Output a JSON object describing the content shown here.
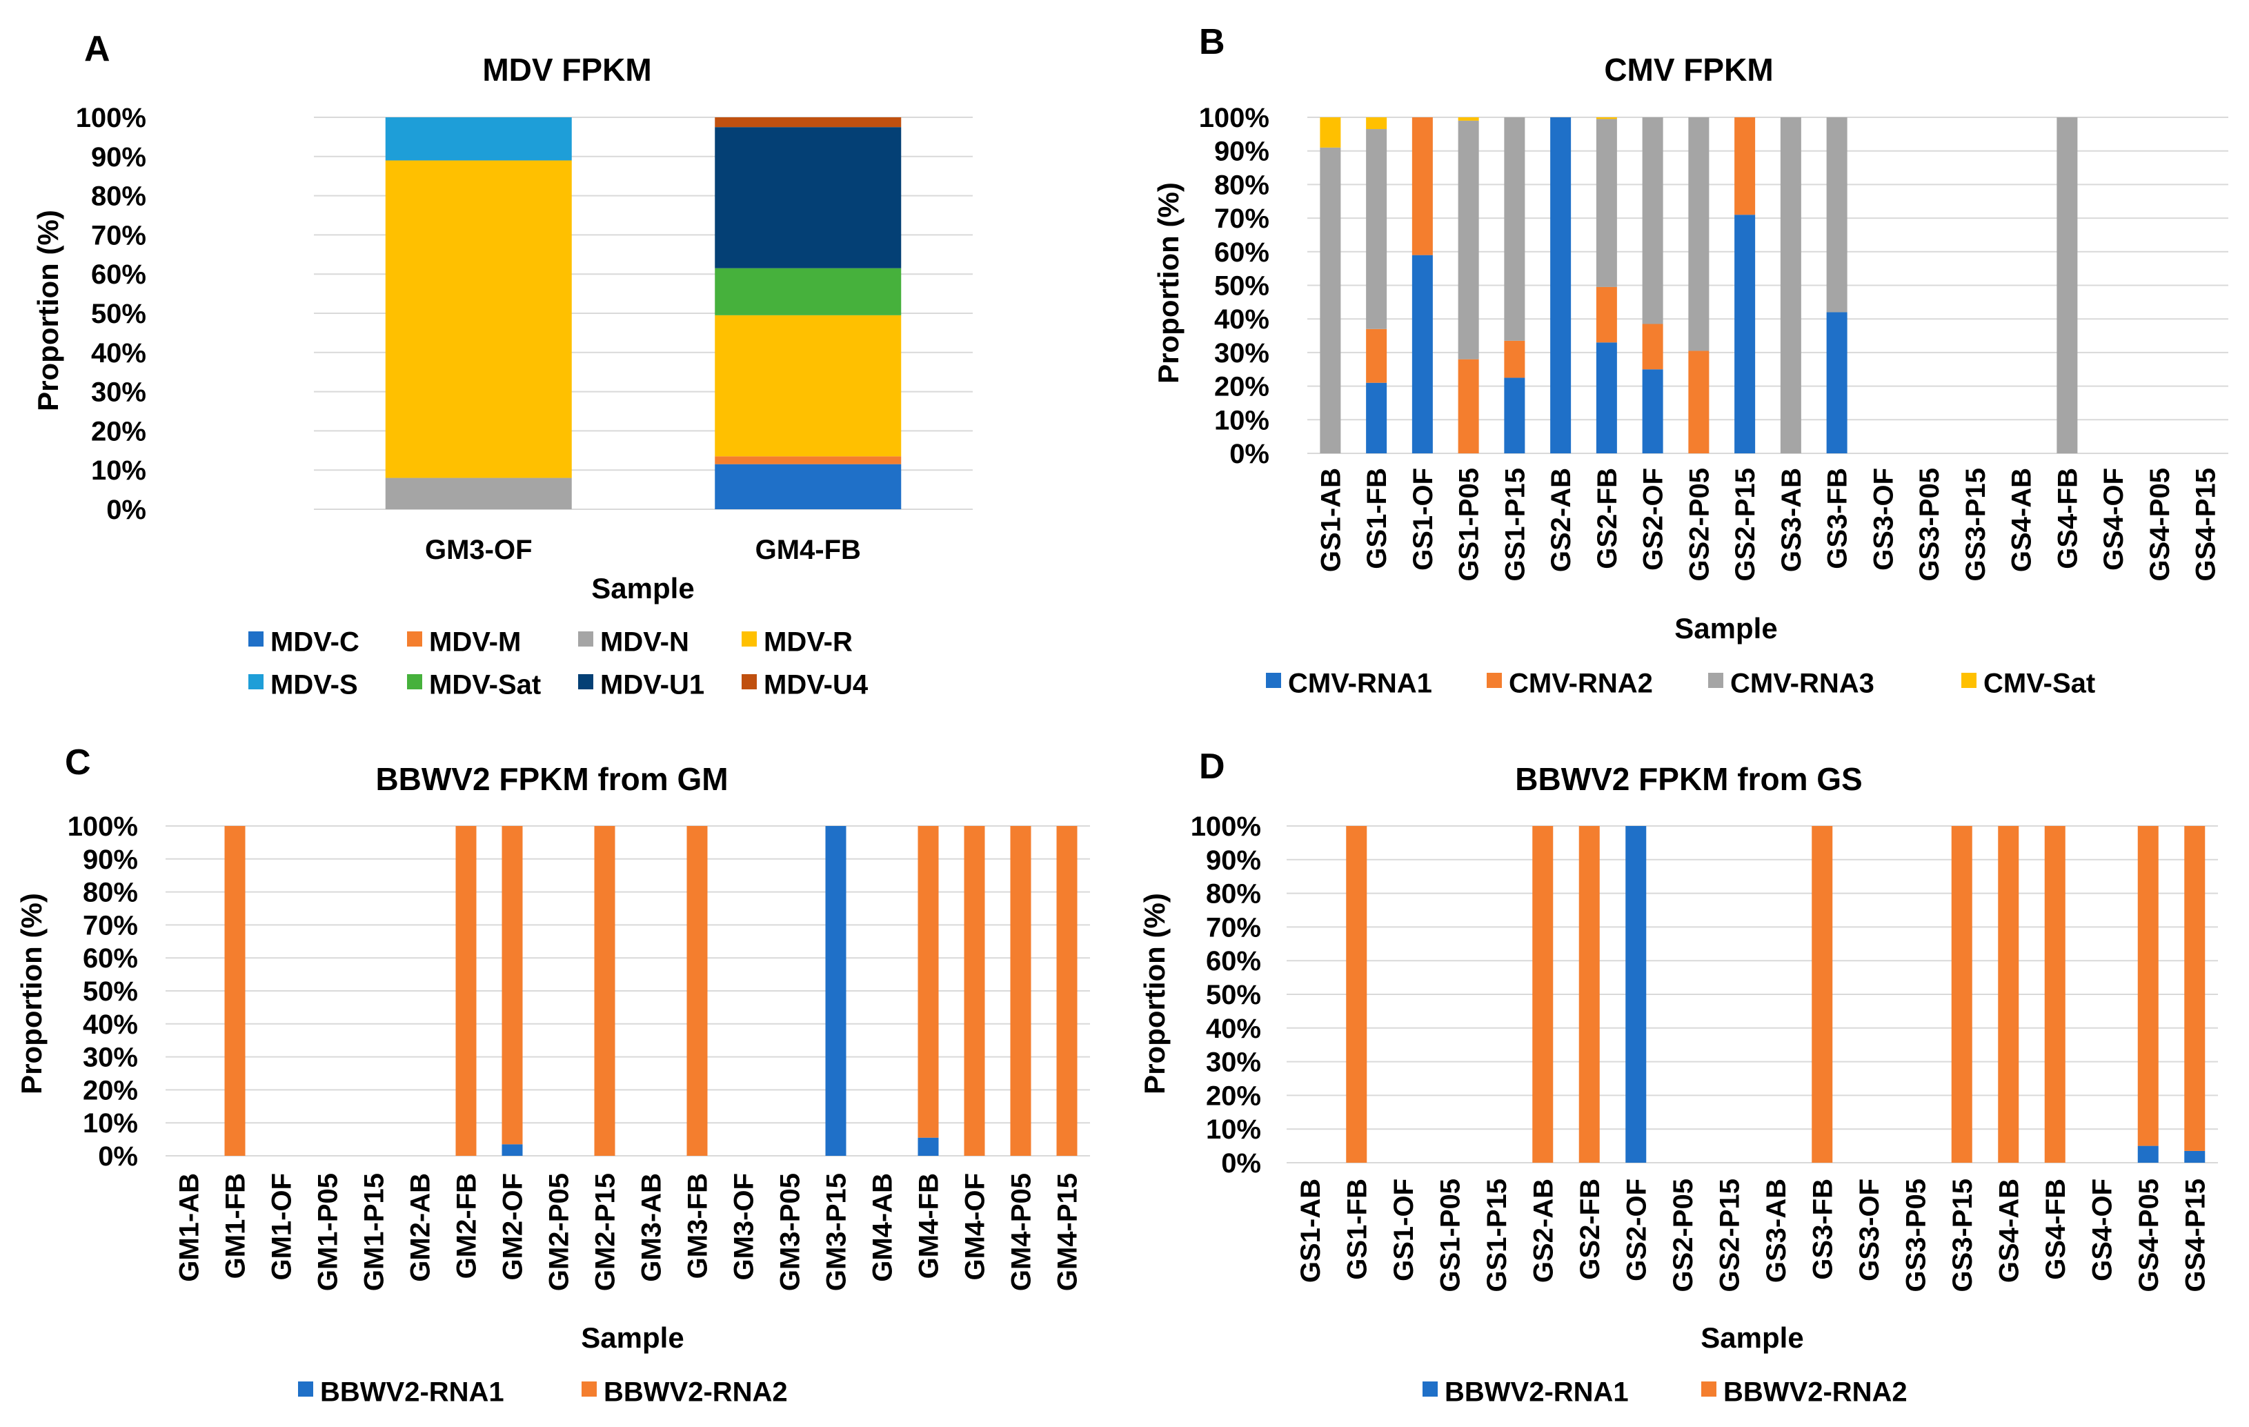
{
  "figure": {
    "panels": [
      "A",
      "B",
      "C",
      "D"
    ]
  },
  "chart_data": [
    {
      "id": "A",
      "type": "bar",
      "stacked": "percent",
      "title": "MDV FPKM",
      "xlabel": "Sample",
      "ylabel": "Proportion (%)",
      "ylim": [
        0,
        100
      ],
      "yticks": [
        "0%",
        "10%",
        "20%",
        "30%",
        "40%",
        "50%",
        "60%",
        "70%",
        "80%",
        "90%",
        "100%"
      ],
      "categories": [
        "GM3-OF",
        "GM4-FB"
      ],
      "series": [
        {
          "name": "MDV-C",
          "color": "#1f70c8",
          "values": [
            0,
            11.5
          ]
        },
        {
          "name": "MDV-M",
          "color": "#f47e2e",
          "values": [
            0,
            2
          ]
        },
        {
          "name": "MDV-N",
          "color": "#a5a5a5",
          "values": [
            8,
            0
          ]
        },
        {
          "name": "MDV-R",
          "color": "#ffc000",
          "values": [
            81,
            36
          ]
        },
        {
          "name": "MDV-S",
          "color": "#1e9ed8",
          "values": [
            11,
            0
          ]
        },
        {
          "name": "MDV-Sat",
          "color": "#46b13c",
          "values": [
            0,
            12
          ]
        },
        {
          "name": "MDV-U1",
          "color": "#044075",
          "values": [
            0,
            36
          ]
        },
        {
          "name": "MDV-U4",
          "color": "#c0500f",
          "values": [
            0,
            2.5
          ]
        }
      ],
      "legend_placement": "bottom"
    },
    {
      "id": "B",
      "type": "bar",
      "stacked": "percent",
      "title": "CMV FPKM",
      "xlabel": "Sample",
      "ylabel": "Proportion (%)",
      "ylim": [
        0,
        100
      ],
      "yticks": [
        "0%",
        "10%",
        "20%",
        "30%",
        "40%",
        "50%",
        "60%",
        "70%",
        "80%",
        "90%",
        "100%"
      ],
      "categories": [
        "GS1-AB",
        "GS1-FB",
        "GS1-OF",
        "GS1-P05",
        "GS1-P15",
        "GS2-AB",
        "GS2-FB",
        "GS2-OF",
        "GS2-P05",
        "GS2-P15",
        "GS3-AB",
        "GS3-FB",
        "GS3-OF",
        "GS3-P05",
        "GS3-P15",
        "GS4-AB",
        "GS4-FB",
        "GS4-OF",
        "GS4-P05",
        "GS4-P15"
      ],
      "series": [
        {
          "name": "CMV-RNA1",
          "color": "#1f70c8",
          "values": [
            0,
            21,
            59,
            0,
            22.5,
            100,
            33,
            25,
            0,
            71,
            0,
            42,
            0,
            0,
            0,
            0,
            0,
            0,
            0,
            0
          ]
        },
        {
          "name": "CMV-RNA2",
          "color": "#f47e2e",
          "values": [
            0,
            16,
            41,
            28,
            11,
            0,
            16.5,
            13.5,
            30.5,
            29,
            0,
            0,
            0,
            0,
            0,
            0,
            0,
            0,
            0,
            0
          ]
        },
        {
          "name": "CMV-RNA3",
          "color": "#a5a5a5",
          "values": [
            91,
            59.5,
            0,
            71,
            66.5,
            0,
            50,
            61.5,
            69.5,
            0,
            100,
            58,
            0,
            0,
            0,
            0,
            100,
            0,
            0,
            0
          ]
        },
        {
          "name": "CMV-Sat",
          "color": "#ffc000",
          "values": [
            9,
            3.5,
            0,
            1,
            0,
            0,
            0.5,
            0,
            0,
            0,
            0,
            0,
            0,
            0,
            0,
            0,
            0,
            0,
            0,
            0
          ]
        }
      ],
      "legend_placement": "bottom"
    },
    {
      "id": "C",
      "type": "bar",
      "stacked": "percent",
      "title": "BBWV2 FPKM from GM",
      "xlabel": "Sample",
      "ylabel": "Proportion (%)",
      "ylim": [
        0,
        100
      ],
      "yticks": [
        "0%",
        "10%",
        "20%",
        "30%",
        "40%",
        "50%",
        "60%",
        "70%",
        "80%",
        "90%",
        "100%"
      ],
      "categories": [
        "GM1-AB",
        "GM1-FB",
        "GM1-OF",
        "GM1-P05",
        "GM1-P15",
        "GM2-AB",
        "GM2-FB",
        "GM2-OF",
        "GM2-P05",
        "GM2-P15",
        "GM3-AB",
        "GM3-FB",
        "GM3-OF",
        "GM3-P05",
        "GM3-P15",
        "GM4-AB",
        "GM4-FB",
        "GM4-OF",
        "GM4-P05",
        "GM4-P15"
      ],
      "series": [
        {
          "name": "BBWV2-RNA1",
          "color": "#1f70c8",
          "values": [
            0,
            0,
            0,
            0,
            0,
            0,
            0,
            3.5,
            0,
            0,
            0,
            0,
            0,
            0,
            100,
            0,
            5.5,
            0,
            0,
            0
          ]
        },
        {
          "name": "BBWV2-RNA2",
          "color": "#f47e2e",
          "values": [
            0,
            100,
            0,
            0,
            0,
            0,
            100,
            96.5,
            0,
            100,
            0,
            100,
            0,
            0,
            0,
            0,
            94.5,
            100,
            100,
            100
          ]
        }
      ],
      "legend_placement": "bottom"
    },
    {
      "id": "D",
      "type": "bar",
      "stacked": "percent",
      "title": "BBWV2 FPKM from GS",
      "xlabel": "Sample",
      "ylabel": "Proportion (%)",
      "ylim": [
        0,
        100
      ],
      "yticks": [
        "0%",
        "10%",
        "20%",
        "30%",
        "40%",
        "50%",
        "60%",
        "70%",
        "80%",
        "90%",
        "100%"
      ],
      "categories": [
        "GS1-AB",
        "GS1-FB",
        "GS1-OF",
        "GS1-P05",
        "GS1-P15",
        "GS2-AB",
        "GS2-FB",
        "GS2-OF",
        "GS2-P05",
        "GS2-P15",
        "GS3-AB",
        "GS3-FB",
        "GS3-OF",
        "GS3-P05",
        "GS3-P15",
        "GS4-AB",
        "GS4-FB",
        "GS4-OF",
        "GS4-P05",
        "GS4-P15"
      ],
      "series": [
        {
          "name": "BBWV2-RNA1",
          "color": "#1f70c8",
          "values": [
            0,
            0,
            0,
            0,
            0,
            0,
            0,
            100,
            0,
            0,
            0,
            0,
            0,
            0,
            0,
            0,
            0,
            0,
            5,
            3.5
          ]
        },
        {
          "name": "BBWV2-RNA2",
          "color": "#f47e2e",
          "values": [
            0,
            100,
            0,
            0,
            0,
            100,
            100,
            0,
            0,
            0,
            0,
            100,
            0,
            0,
            100,
            100,
            100,
            0,
            95,
            96.5
          ]
        }
      ],
      "legend_placement": "bottom"
    }
  ]
}
